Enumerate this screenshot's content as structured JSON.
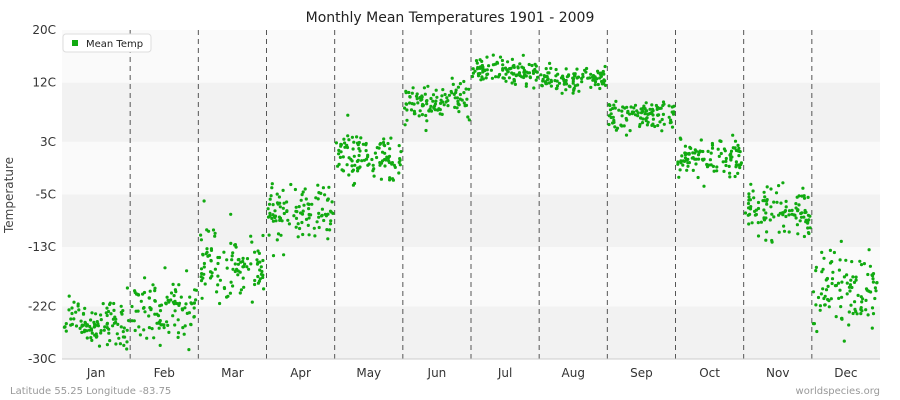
{
  "chart_data": {
    "type": "scatter",
    "title": "Monthly Mean Temperatures 1901 - 2009",
    "ylabel": "Temperature",
    "xlabel": "",
    "ylim": [
      -30,
      20
    ],
    "yticks": [
      "-30C",
      "-22C",
      "-13C",
      "-5C",
      "3C",
      "12C",
      "20C"
    ],
    "categories": [
      "Jan",
      "Feb",
      "Mar",
      "Apr",
      "May",
      "Jun",
      "Jul",
      "Aug",
      "Sep",
      "Oct",
      "Nov",
      "Dec"
    ],
    "monthly_means": [
      -24.5,
      -22.5,
      -15.5,
      -7.5,
      0.5,
      9.0,
      13.5,
      12.5,
      7.0,
      0.5,
      -7.5,
      -20.0
    ],
    "monthly_spread": [
      2.0,
      2.5,
      2.5,
      2.0,
      2.0,
      1.5,
      1.0,
      1.0,
      1.2,
      1.5,
      2.0,
      3.0
    ],
    "years_per_month": 109,
    "series": [
      {
        "name": "Mean Temp",
        "color": "#11aa11"
      }
    ],
    "legend": {
      "label": "Mean Temp",
      "position": "top-left"
    },
    "grid": "horizontal bands with dashed vertical month separators",
    "colors": {
      "point": "#11aa11",
      "band_light": "#fafafa",
      "band_dark": "#f2f2f2",
      "separator": "#555555"
    }
  },
  "footer": {
    "left": "Latitude 55.25 Longitude -83.75",
    "right": "worldspecies.org"
  }
}
